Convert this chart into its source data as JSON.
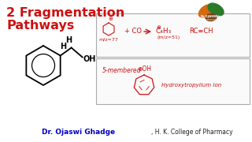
{
  "bg_color": "#ffffff",
  "title_line1": "2 Fragmentation",
  "title_line2": "Pathways",
  "title_color": "#cc0000",
  "footer_name": "Dr. Ojaswi Ghadge",
  "footer_inst": ", H. K. College of Pharmacy",
  "footer_color_name": "#0000bb",
  "footer_color_inst": "#222222",
  "red": "#cc1111",
  "gray": "#999999",
  "box_bg": "#fafafa"
}
